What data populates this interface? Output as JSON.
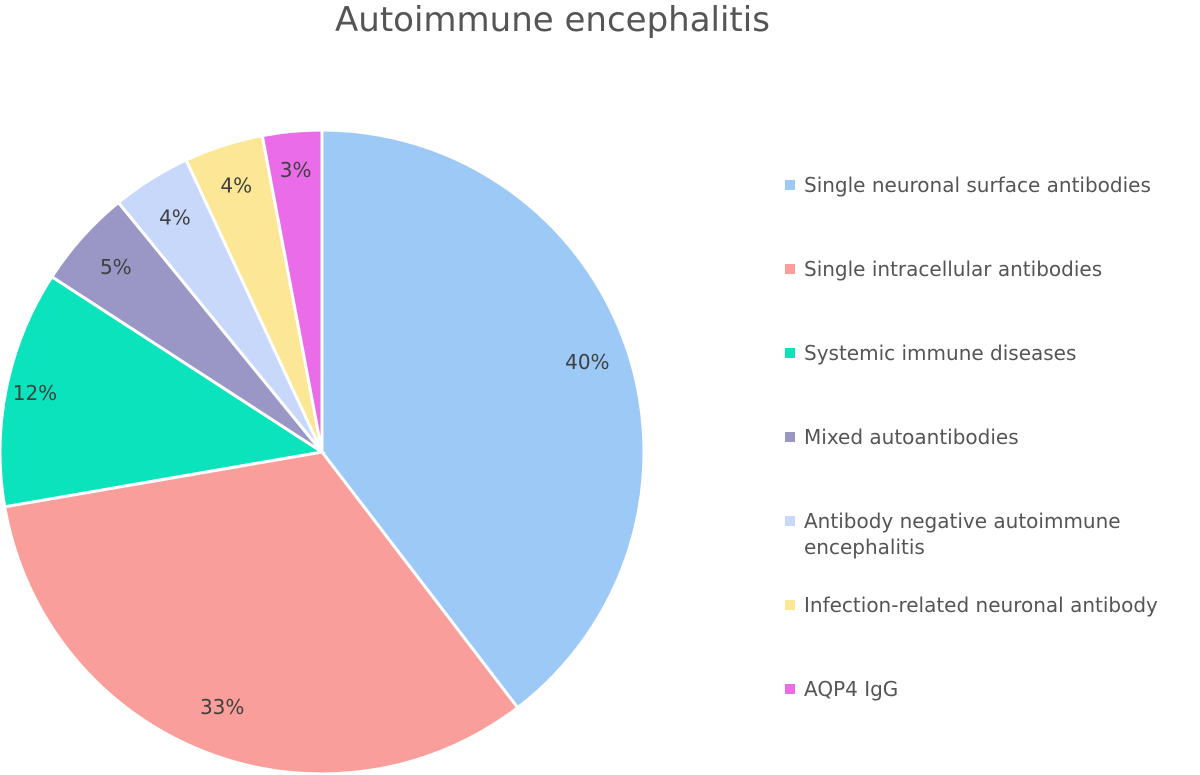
{
  "chart_data": {
    "type": "pie",
    "title": "Autoimmune encephalitis",
    "slices": [
      {
        "label": "Single neuronal surface antibodies",
        "value": 40,
        "display": "40%",
        "color": "#9dc9f7"
      },
      {
        "label": "Single intracellular antibodies",
        "value": 33,
        "display": "33%",
        "color": "#f99e9a"
      },
      {
        "label": "Systemic immune diseases",
        "value": 12,
        "display": "12%",
        "color": "#0ae3bc"
      },
      {
        "label": "Mixed autoantibodies",
        "value": 5,
        "display": "5%",
        "color": "#9a97c6"
      },
      {
        "label": "Antibody negative autoimmune encephalitis",
        "value": 4,
        "display": "4%",
        "color": "#c8d8fb"
      },
      {
        "label": "Infection-related neuronal antibody",
        "value": 4,
        "display": "4%",
        "color": "#fbe796"
      },
      {
        "label": "AQP4 IgG",
        "value": 3,
        "display": "3%",
        "color": "#ea6ce9"
      }
    ],
    "legend_position": "right"
  }
}
